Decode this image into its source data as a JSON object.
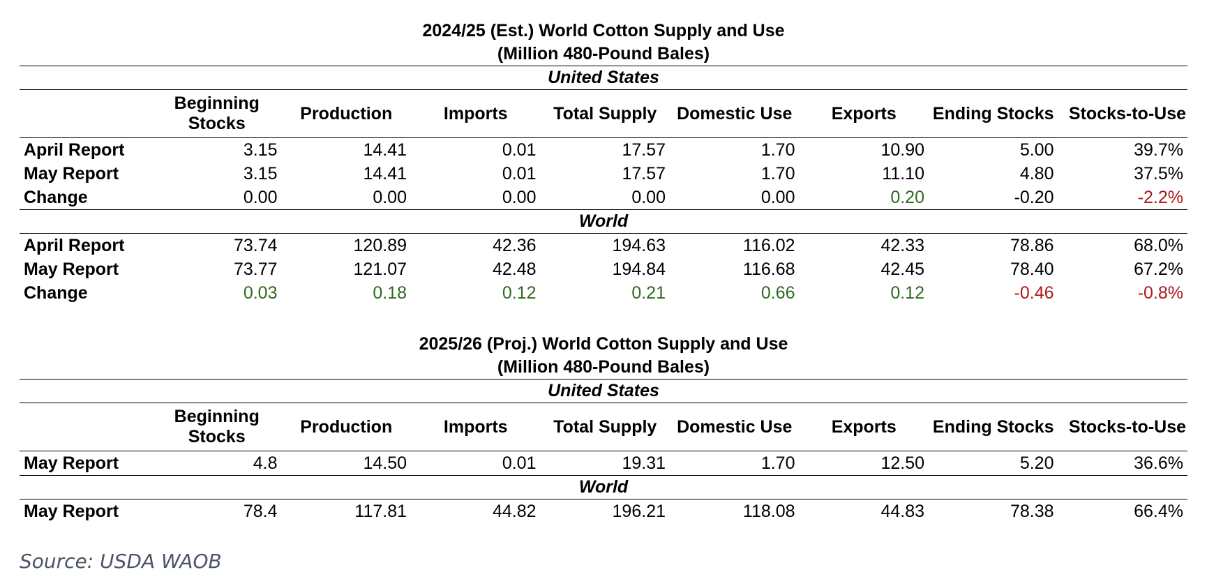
{
  "tables": [
    {
      "title": "2024/25 (Est.) World Cotton Supply and Use",
      "subtitle": "(Million 480-Pound Bales)",
      "sections": [
        {
          "name": "United States",
          "rows": [
            {
              "label": "April Report",
              "values": [
                "3.15",
                "14.41",
                "0.01",
                "17.57",
                "1.70",
                "10.90",
                "5.00",
                "39.7%"
              ],
              "colors": [
                "",
                "",
                "",
                "",
                "",
                "",
                "",
                ""
              ]
            },
            {
              "label": "May Report",
              "values": [
                "3.15",
                "14.41",
                "0.01",
                "17.57",
                "1.70",
                "11.10",
                "4.80",
                "37.5%"
              ],
              "colors": [
                "",
                "",
                "",
                "",
                "",
                "",
                "",
                ""
              ]
            },
            {
              "label": "Change",
              "values": [
                "0.00",
                "0.00",
                "0.00",
                "0.00",
                "0.00",
                "0.20",
                "-0.20",
                "-2.2%"
              ],
              "colors": [
                "",
                "",
                "",
                "",
                "",
                "pos",
                "",
                "neg"
              ]
            }
          ]
        },
        {
          "name": "World",
          "rows": [
            {
              "label": "April Report",
              "values": [
                "73.74",
                "120.89",
                "42.36",
                "194.63",
                "116.02",
                "42.33",
                "78.86",
                "68.0%"
              ],
              "colors": [
                "",
                "",
                "",
                "",
                "",
                "",
                "",
                ""
              ]
            },
            {
              "label": "May Report",
              "values": [
                "73.77",
                "121.07",
                "42.48",
                "194.84",
                "116.68",
                "42.45",
                "78.40",
                "67.2%"
              ],
              "colors": [
                "",
                "",
                "",
                "",
                "",
                "",
                "",
                ""
              ]
            },
            {
              "label": "Change",
              "values": [
                "0.03",
                "0.18",
                "0.12",
                "0.21",
                "0.66",
                "0.12",
                "-0.46",
                "-0.8%"
              ],
              "colors": [
                "pos",
                "pos",
                "pos",
                "pos",
                "pos",
                "pos",
                "neg",
                "neg"
              ]
            }
          ]
        }
      ]
    },
    {
      "title": "2025/26 (Proj.) World Cotton Supply and Use",
      "subtitle": "(Million 480-Pound Bales)",
      "sections": [
        {
          "name": "United States",
          "rows": [
            {
              "label": "May Report",
              "values": [
                "4.8",
                "14.50",
                "0.01",
                "19.31",
                "1.70",
                "12.50",
                "5.20",
                "36.6%"
              ],
              "colors": [
                "",
                "",
                "",
                "",
                "",
                "",
                "",
                ""
              ]
            }
          ]
        },
        {
          "name": "World",
          "rows": [
            {
              "label": "May Report",
              "values": [
                "78.4",
                "117.81",
                "44.82",
                "196.21",
                "118.08",
                "44.83",
                "78.38",
                "66.4%"
              ],
              "colors": [
                "",
                "",
                "",
                "",
                "",
                "",
                "",
                ""
              ]
            }
          ]
        }
      ]
    }
  ],
  "columns": [
    "Beginning Stocks",
    "Production",
    "Imports",
    "Total Supply",
    "Domestic Use",
    "Exports",
    "Ending Stocks",
    "Stocks-to-Use"
  ],
  "source": "Source: USDA WAOB",
  "colors": {
    "positive": "#2e6b1e",
    "negative": "#b01818"
  }
}
